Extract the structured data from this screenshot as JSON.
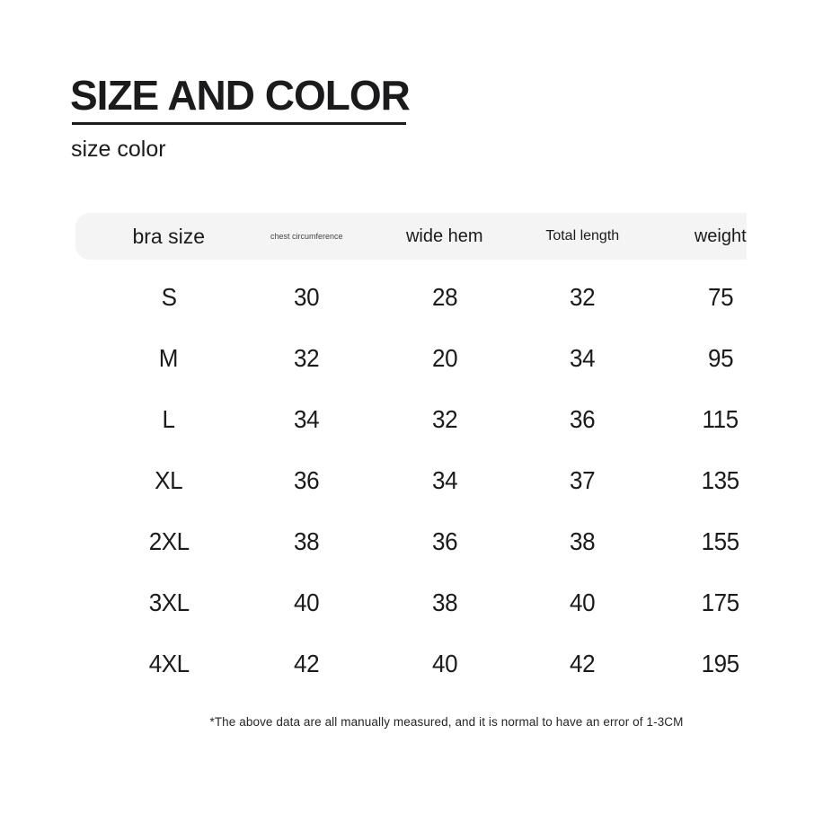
{
  "header": {
    "title": "SIZE AND COLOR",
    "subtitle": "size color"
  },
  "table": {
    "columns": [
      {
        "key": "bra-size",
        "label": "bra size"
      },
      {
        "key": "chest-circumference",
        "label": "chest circumference"
      },
      {
        "key": "wide-hem",
        "label": "wide hem"
      },
      {
        "key": "total-length",
        "label": "Total length"
      },
      {
        "key": "weight",
        "label": "weight"
      }
    ],
    "rows": [
      {
        "size": "S",
        "values": [
          "30",
          "28",
          "32",
          "75"
        ]
      },
      {
        "size": "M",
        "values": [
          "32",
          "20",
          "34",
          "95"
        ]
      },
      {
        "size": "L",
        "values": [
          "34",
          "32",
          "36",
          "115"
        ]
      },
      {
        "size": "XL",
        "values": [
          "36",
          "34",
          "37",
          "135"
        ]
      },
      {
        "size": "2XL",
        "values": [
          "38",
          "36",
          "38",
          "155"
        ]
      },
      {
        "size": "3XL",
        "values": [
          "40",
          "38",
          "40",
          "175"
        ]
      },
      {
        "size": "4XL",
        "values": [
          "42",
          "40",
          "42",
          "195"
        ]
      }
    ]
  },
  "footnote": "*The above data are all manually measured, and it is normal to have an error of 1-3CM",
  "colors": {
    "background": "#ffffff",
    "text": "#1b1b1d",
    "header_pill": "#f4f4f5",
    "small_header_text": "#444446",
    "footnote_text": "#262626"
  }
}
